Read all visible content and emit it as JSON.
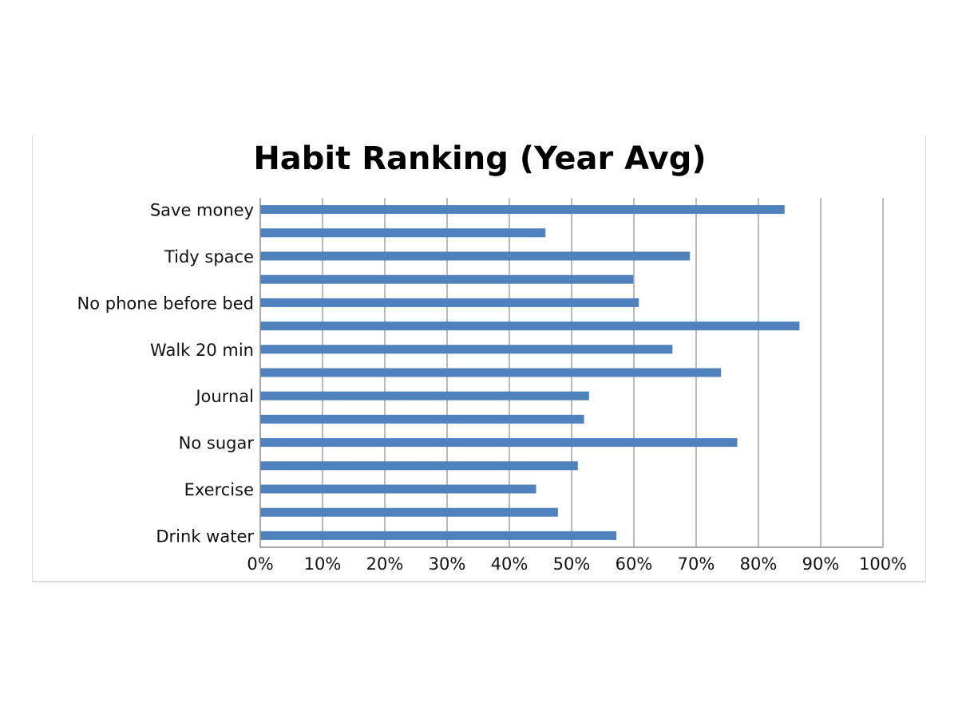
{
  "chart_data": {
    "type": "bar",
    "orientation": "horizontal",
    "title": "Habit Ranking (Year Avg)",
    "xlabel": "",
    "ylabel": "",
    "xlim": [
      0,
      100
    ],
    "x_ticks": [
      "0%",
      "10%",
      "20%",
      "30%",
      "40%",
      "50%",
      "60%",
      "70%",
      "80%",
      "90%",
      "100%"
    ],
    "grid": "vertical",
    "legend": "none",
    "bar_color": "#4f81bd",
    "categories": [
      {
        "label": "Drink water",
        "value": 57.2
      },
      {
        "label": "",
        "value": 47.8
      },
      {
        "label": "Exercise",
        "value": 44.3
      },
      {
        "label": "",
        "value": 51.0
      },
      {
        "label": "No sugar",
        "value": 76.6
      },
      {
        "label": "",
        "value": 52.0
      },
      {
        "label": "Journal",
        "value": 52.8
      },
      {
        "label": "",
        "value": 74.0
      },
      {
        "label": "Walk 20 min",
        "value": 66.2
      },
      {
        "label": "",
        "value": 86.6
      },
      {
        "label": "No phone before bed",
        "value": 60.8
      },
      {
        "label": "",
        "value": 59.9
      },
      {
        "label": "Tidy space",
        "value": 69.0
      },
      {
        "label": "",
        "value": 45.8
      },
      {
        "label": "Save money",
        "value": 84.2
      }
    ]
  }
}
